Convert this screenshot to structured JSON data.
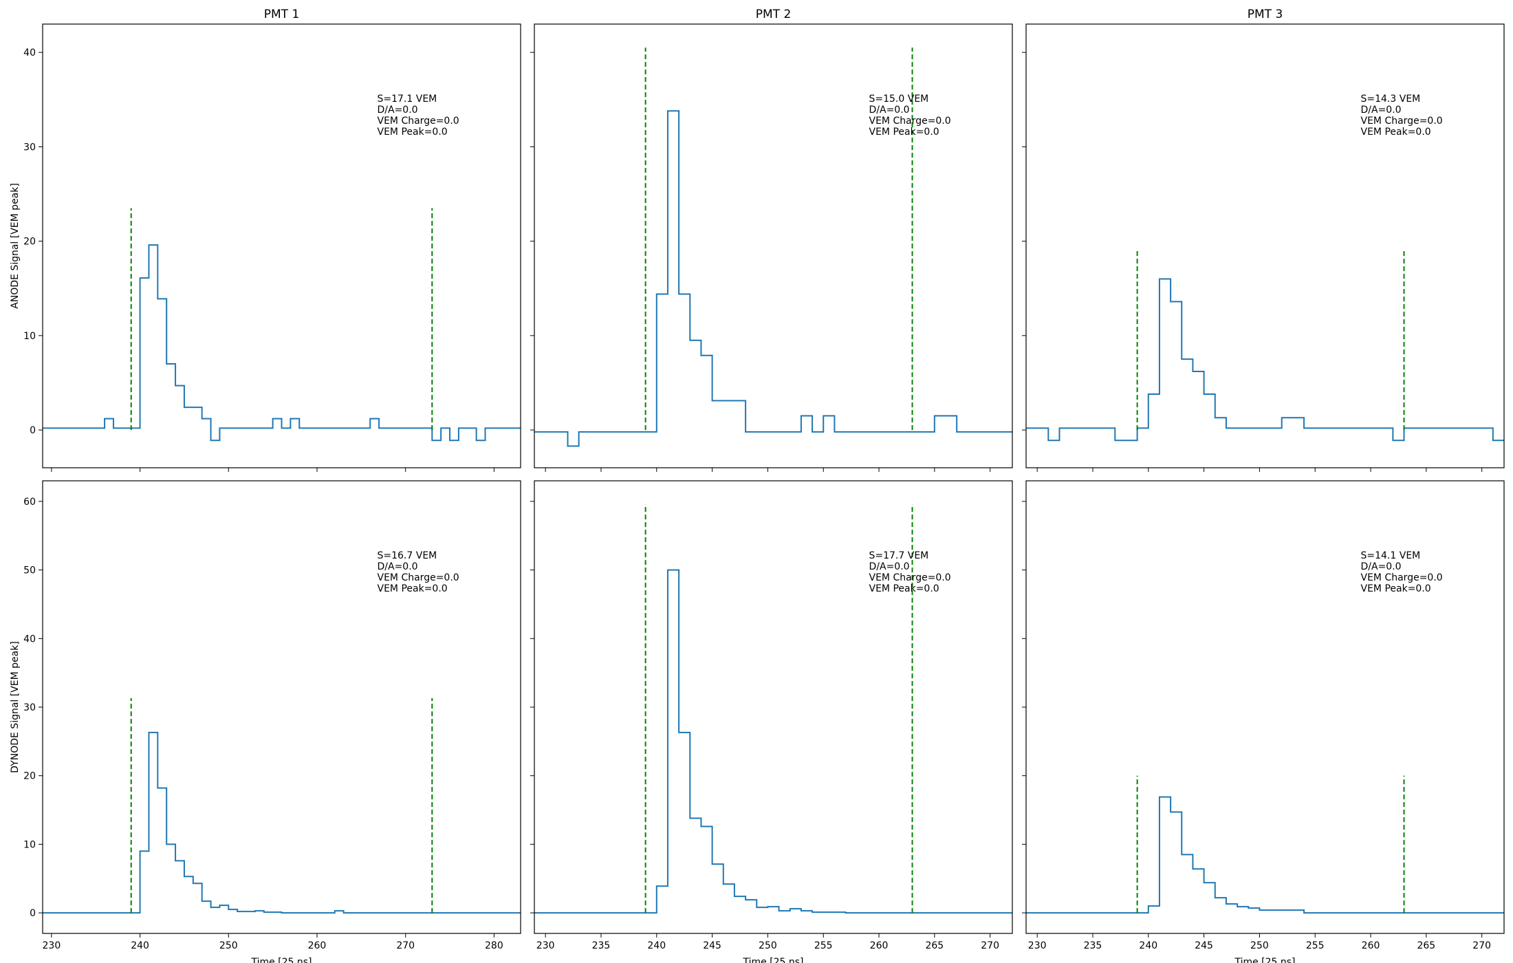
{
  "chart_data": [
    {
      "type": "line",
      "subtype": "step",
      "title": "PMT 1",
      "xlabel": "",
      "ylabel": "ANODE Signal [VEM peak]",
      "xlim": [
        229,
        283
      ],
      "ylim": [
        -4,
        43
      ],
      "xticks": [
        230,
        240,
        250,
        260,
        270,
        280
      ],
      "xticklabels_visible": false,
      "yticks": [
        0,
        10,
        20,
        30,
        40
      ],
      "series": [
        {
          "x": [
            229,
            236,
            237,
            240,
            241,
            242,
            243,
            244,
            245,
            247,
            248,
            249,
            255,
            256,
            257,
            258,
            266,
            267,
            273,
            274,
            275,
            276,
            278,
            279,
            280,
            283
          ],
          "y": [
            0.2,
            1.2,
            0.2,
            16.1,
            19.6,
            13.9,
            7.0,
            4.7,
            2.4,
            1.2,
            -1.1,
            0.2,
            1.2,
            0.2,
            1.2,
            0.2,
            1.2,
            0.2,
            -1.1,
            0.2,
            -1.1,
            0.2,
            -1.1,
            0.2,
            0.2,
            0.2
          ]
        }
      ],
      "vlines": [
        {
          "x": 239,
          "ymax": 23.5
        },
        {
          "x": 273,
          "ymax": 23.5
        }
      ],
      "annotation": [
        "S=17.1 VEM",
        "D/A=0.0",
        "VEM Charge=0.0",
        "VEM Peak=0.0"
      ]
    },
    {
      "type": "line",
      "subtype": "step",
      "title": "PMT 2",
      "xlabel": "",
      "ylabel": "",
      "xlim": [
        229,
        272
      ],
      "ylim": [
        -4,
        43
      ],
      "xticks": [
        230,
        235,
        240,
        245,
        250,
        255,
        260,
        265,
        270
      ],
      "xticklabels_visible": false,
      "yticks": [
        0,
        10,
        20,
        30,
        40
      ],
      "yticklabels_visible": false,
      "series": [
        {
          "x": [
            229,
            232,
            233,
            240,
            241,
            242,
            243,
            244,
            245,
            246,
            248,
            253,
            254,
            255,
            256,
            265,
            267,
            272
          ],
          "y": [
            -0.2,
            -1.7,
            -0.2,
            14.4,
            33.8,
            14.4,
            9.5,
            7.9,
            3.1,
            3.1,
            -0.2,
            1.5,
            -0.2,
            1.5,
            -0.2,
            1.5,
            -0.2,
            -0.2
          ]
        }
      ],
      "vlines": [
        {
          "x": 239,
          "ymax": 40.5
        },
        {
          "x": 263,
          "ymax": 40.5
        }
      ],
      "annotation": [
        "S=15.0 VEM",
        "D/A=0.0",
        "VEM Charge=0.0",
        "VEM Peak=0.0"
      ]
    },
    {
      "type": "line",
      "subtype": "step",
      "title": "PMT 3",
      "xlabel": "",
      "ylabel": "",
      "xlim": [
        229,
        272
      ],
      "ylim": [
        -4,
        43
      ],
      "xticks": [
        230,
        235,
        240,
        245,
        250,
        255,
        260,
        265,
        270
      ],
      "xticklabels_visible": false,
      "yticks": [
        0,
        10,
        20,
        30,
        40
      ],
      "yticklabels_visible": false,
      "series": [
        {
          "x": [
            229,
            231,
            232,
            237,
            239,
            240,
            241,
            242,
            243,
            244,
            245,
            246,
            247,
            252,
            254,
            262,
            263,
            271,
            272
          ],
          "y": [
            0.2,
            -1.1,
            0.2,
            -1.1,
            0.2,
            3.8,
            16.0,
            13.6,
            7.5,
            6.2,
            3.8,
            1.3,
            0.2,
            1.3,
            0.2,
            -1.1,
            0.2,
            -1.1,
            -1.1
          ]
        }
      ],
      "vlines": [
        {
          "x": 239,
          "ymax": 19.0
        },
        {
          "x": 263,
          "ymax": 19.0
        }
      ],
      "annotation": [
        "S=14.3 VEM",
        "D/A=0.0",
        "VEM Charge=0.0",
        "VEM Peak=0.0"
      ]
    },
    {
      "type": "line",
      "subtype": "step",
      "title": "",
      "xlabel": "Time [25 ns]",
      "ylabel": "DYNODE Signal [VEM peak]",
      "xlim": [
        229,
        283
      ],
      "ylim": [
        -3,
        63
      ],
      "xticks": [
        230,
        240,
        250,
        260,
        270,
        280
      ],
      "yticks": [
        0,
        10,
        20,
        30,
        40,
        50,
        60
      ],
      "series": [
        {
          "x": [
            229,
            240,
            241,
            242,
            243,
            244,
            245,
            246,
            247,
            248,
            249,
            250,
            251,
            253,
            254,
            256,
            262,
            263,
            283
          ],
          "y": [
            0,
            9.0,
            26.3,
            18.2,
            10.0,
            7.6,
            5.3,
            4.3,
            1.7,
            0.8,
            1.1,
            0.5,
            0.2,
            0.3,
            0.1,
            0.0,
            0.3,
            0.0,
            0.0
          ]
        }
      ],
      "vlines": [
        {
          "x": 239,
          "ymax": 31.3
        },
        {
          "x": 273,
          "ymax": 31.3
        }
      ],
      "annotation": [
        "S=16.7 VEM",
        "D/A=0.0",
        "VEM Charge=0.0",
        "VEM Peak=0.0"
      ]
    },
    {
      "type": "line",
      "subtype": "step",
      "title": "",
      "xlabel": "Time [25 ns]",
      "ylabel": "",
      "xlim": [
        229,
        272
      ],
      "ylim": [
        -3,
        63
      ],
      "xticks": [
        230,
        235,
        240,
        245,
        250,
        255,
        260,
        265,
        270
      ],
      "yticks": [
        0,
        10,
        20,
        30,
        40,
        50,
        60
      ],
      "yticklabels_visible": false,
      "series": [
        {
          "x": [
            229,
            240,
            241,
            242,
            243,
            244,
            245,
            246,
            247,
            248,
            249,
            250,
            251,
            252,
            253,
            254,
            255,
            256,
            257,
            272
          ],
          "y": [
            0,
            3.9,
            50.0,
            26.3,
            13.8,
            12.6,
            7.1,
            4.2,
            2.4,
            1.9,
            0.8,
            0.9,
            0.3,
            0.6,
            0.3,
            0.1,
            0.1,
            0.1,
            0.0,
            0.0
          ]
        }
      ],
      "vlines": [
        {
          "x": 239,
          "ymax": 59.6
        },
        {
          "x": 263,
          "ymax": 59.6
        }
      ],
      "annotation": [
        "S=17.7 VEM",
        "D/A=0.0",
        "VEM Charge=0.0",
        "VEM Peak=0.0"
      ]
    },
    {
      "type": "line",
      "subtype": "step",
      "title": "",
      "xlabel": "Time [25 ns]",
      "ylabel": "",
      "xlim": [
        229,
        272
      ],
      "ylim": [
        -3,
        63
      ],
      "xticks": [
        230,
        235,
        240,
        245,
        250,
        255,
        260,
        265,
        270
      ],
      "yticks": [
        0,
        10,
        20,
        30,
        40,
        50,
        60
      ],
      "yticklabels_visible": false,
      "series": [
        {
          "x": [
            229,
            240,
            241,
            242,
            243,
            244,
            245,
            246,
            247,
            248,
            249,
            250,
            251,
            254,
            272
          ],
          "y": [
            0,
            1.0,
            16.9,
            14.7,
            8.5,
            6.4,
            4.4,
            2.2,
            1.3,
            0.9,
            0.7,
            0.4,
            0.4,
            0.0,
            0.0
          ]
        }
      ],
      "vlines": [
        {
          "x": 239,
          "ymax": 20.0
        },
        {
          "x": 263,
          "ymax": 20.0
        }
      ],
      "annotation": [
        "S=14.1 VEM",
        "D/A=0.0",
        "VEM Charge=0.0",
        "VEM Peak=0.0"
      ]
    }
  ],
  "colors": {
    "trace": "#1f77b4",
    "window_line": "#008000",
    "axes": "#000000"
  }
}
